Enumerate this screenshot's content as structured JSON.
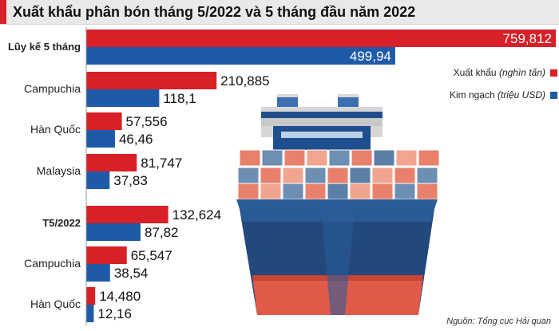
{
  "title": "Xuất khẩu phân bón tháng 5/2022 và 5 tháng đầu năm 2022",
  "legend": {
    "export_label": "Xuất khẩu",
    "export_unit": "(nghìn tấn)",
    "value_label": "Kim ngạch",
    "value_unit": "(triệu USD)"
  },
  "source": "Nguồn: Tổng cục Hải quan",
  "colors": {
    "export": "#d72027",
    "value": "#1e5aa8",
    "title_accent": "#d72027"
  },
  "chart_data": {
    "type": "bar",
    "orientation": "horizontal",
    "categories": [
      "Lũy kế 5 tháng",
      "Campuchia",
      "Hàn Quốc",
      "Malaysia",
      "T5/2022",
      "Campuchia",
      "Hàn Quốc"
    ],
    "bold_categories": [
      0,
      4
    ],
    "series": [
      {
        "name": "Xuất khẩu (nghìn tấn)",
        "values": [
          759.812,
          210.885,
          57.556,
          81.747,
          132.624,
          65.547,
          14.48
        ],
        "labels": [
          "759,812",
          "210,885",
          "57,556",
          "81,747",
          "132,624",
          "65,547",
          "14,480"
        ]
      },
      {
        "name": "Kim ngạch (triệu USD)",
        "values": [
          499.94,
          118.1,
          46.46,
          37.83,
          87.82,
          38.54,
          12.16
        ],
        "labels": [
          "499,94",
          "118,1",
          "46,46",
          "37,83",
          "87,82",
          "38,54",
          "12,16"
        ]
      }
    ],
    "xlim": [
      0,
      759.812
    ],
    "grid": false,
    "legend_position": "right",
    "title": "Xuất khẩu phân bón tháng 5/2022 và 5 tháng đầu năm 2022"
  }
}
